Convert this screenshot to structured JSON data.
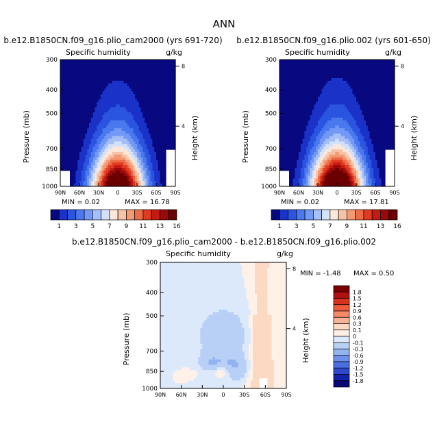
{
  "page_title": "ANN",
  "chart_data": [
    {
      "type": "heatmap",
      "title": "b.e12.B1850CN.f09_g16.plio_cam2000 (yrs 691-720)",
      "variable": "Specific humidity",
      "units": "g/kg",
      "xlabel": "",
      "ylabel": "Pressure (mb)",
      "y2label": "Height (km)",
      "x_ticks": [
        "90N",
        "60N",
        "30N",
        "0",
        "30S",
        "60S",
        "90S"
      ],
      "y_ticks": [
        "300",
        "400",
        "500",
        "700",
        "850",
        "1000"
      ],
      "y2_ticks": [
        "8",
        "4"
      ],
      "min_text": "MIN =    0.02",
      "max_text": "MAX =  16.78",
      "min": 0.02,
      "max": 16.78,
      "colorbar_labels": [
        "1",
        "3",
        "5",
        "7",
        "9",
        "11",
        "13",
        "16"
      ],
      "colorbar_colors": [
        "#080880",
        "#1a32c8",
        "#2b55e0",
        "#4a78ee",
        "#7399f5",
        "#a5bff7",
        "#d3e1f9",
        "#fce7da",
        "#f5c3a7",
        "#f39a75",
        "#ee6b48",
        "#e03a22",
        "#c31b10",
        "#980a0a",
        "#6a0000"
      ]
    },
    {
      "type": "heatmap",
      "title": "b.e12.B1850CN.f09_g16.plio.002 (yrs 601-650)",
      "variable": "Specific humidity",
      "units": "g/kg",
      "xlabel": "",
      "ylabel": "Pressure (mb)",
      "y2label": "Height (km)",
      "x_ticks": [
        "90N",
        "60N",
        "30N",
        "0",
        "30S",
        "60S",
        "90S"
      ],
      "y_ticks": [
        "300",
        "400",
        "500",
        "700",
        "850",
        "1000"
      ],
      "y2_ticks": [
        "8",
        "4"
      ],
      "min_text": "MIN =    0.02",
      "max_text": "MAX =  17.81",
      "min": 0.02,
      "max": 17.81,
      "colorbar_labels": [
        "1",
        "3",
        "5",
        "7",
        "9",
        "11",
        "13",
        "16"
      ],
      "colorbar_colors": [
        "#080880",
        "#1a32c8",
        "#2b55e0",
        "#4a78ee",
        "#7399f5",
        "#a5bff7",
        "#d3e1f9",
        "#fce7da",
        "#f5c3a7",
        "#f39a75",
        "#ee6b48",
        "#e03a22",
        "#c31b10",
        "#980a0a",
        "#6a0000"
      ]
    },
    {
      "type": "heatmap",
      "title": "b.e12.B1850CN.f09_g16.plio_cam2000 - b.e12.B1850CN.f09_g16.plio.002",
      "variable": "Specific humidity",
      "units": "g/kg",
      "xlabel": "",
      "ylabel": "Pressure (mb)",
      "y2label": "Height (km)",
      "x_ticks": [
        "90N",
        "60N",
        "30N",
        "0",
        "30S",
        "60S",
        "90S"
      ],
      "y_ticks": [
        "300",
        "400",
        "500",
        "700",
        "850",
        "1000"
      ],
      "y2_ticks": [
        "8",
        "4"
      ],
      "min_text": "MIN =   -1.48",
      "max_text": "MAX =    0.50",
      "min": -1.48,
      "max": 0.5,
      "colorbar_labels": [
        "1.8",
        "1.5",
        "1.2",
        "0.9",
        "0.6",
        "0.3",
        "0.1",
        "0",
        "-0.1",
        "-0.3",
        "-0.6",
        "-0.9",
        "-1.2",
        "-1.5",
        "-1.8"
      ],
      "colorbar_colors": [
        "#7a0000",
        "#b01010",
        "#d8321e",
        "#ee5b3c",
        "#f48a68",
        "#f6b294",
        "#fcd9c3",
        "#fff1e8",
        "#dce9fb",
        "#b8d0f6",
        "#93b3f0",
        "#6c92ea",
        "#4a6fe0",
        "#2b48cf",
        "#1222a8",
        "#07077a"
      ]
    }
  ]
}
